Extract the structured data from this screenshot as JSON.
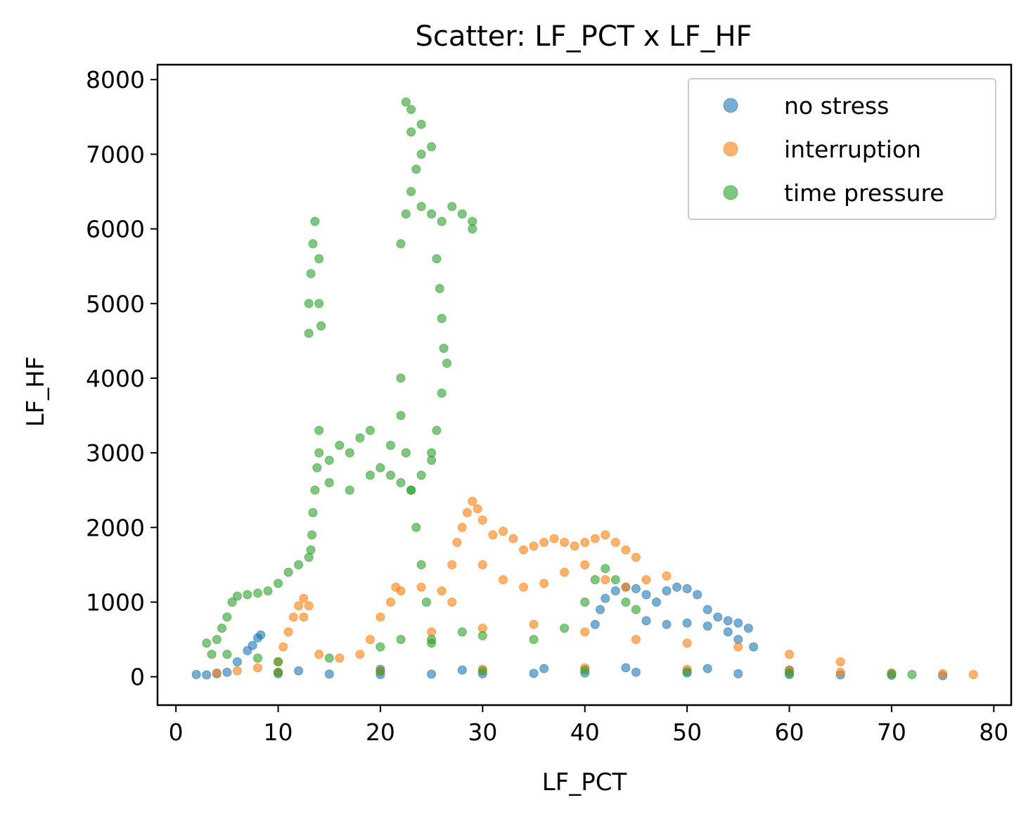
{
  "chart_data": {
    "type": "scatter",
    "title": "Scatter: LF_PCT x LF_HF",
    "xlabel": "LF_PCT",
    "ylabel": "LF_HF",
    "xlim": [
      -1.8,
      81.7
    ],
    "ylim": [
      -380,
      8200
    ],
    "xticks": [
      0,
      10,
      20,
      30,
      40,
      50,
      60,
      70,
      80
    ],
    "yticks": [
      0,
      1000,
      2000,
      3000,
      4000,
      5000,
      6000,
      7000,
      8000
    ],
    "grid": false,
    "legend_position": "top-right",
    "series": [
      {
        "name": "no stress",
        "color": "#1f77b4",
        "points": [
          [
            2,
            30
          ],
          [
            3,
            25
          ],
          [
            4,
            40
          ],
          [
            5,
            60
          ],
          [
            6,
            200
          ],
          [
            7,
            350
          ],
          [
            7.5,
            420
          ],
          [
            8,
            520
          ],
          [
            8.3,
            560
          ],
          [
            10,
            40
          ],
          [
            15,
            35
          ],
          [
            20,
            30
          ],
          [
            25,
            35
          ],
          [
            30,
            40
          ],
          [
            35,
            45
          ],
          [
            40,
            50
          ],
          [
            45,
            60
          ],
          [
            50,
            50
          ],
          [
            55,
            40
          ],
          [
            60,
            30
          ],
          [
            65,
            25
          ],
          [
            70,
            20
          ],
          [
            75,
            15
          ],
          [
            41,
            700
          ],
          [
            41.5,
            900
          ],
          [
            42,
            1050
          ],
          [
            43,
            1150
          ],
          [
            44,
            1200
          ],
          [
            45,
            1180
          ],
          [
            46,
            1100
          ],
          [
            47,
            1000
          ],
          [
            48,
            1150
          ],
          [
            49,
            1200
          ],
          [
            50,
            1180
          ],
          [
            51,
            1100
          ],
          [
            52,
            900
          ],
          [
            53,
            800
          ],
          [
            54,
            750
          ],
          [
            55,
            720
          ],
          [
            56,
            650
          ],
          [
            56.5,
            400
          ],
          [
            46,
            750
          ],
          [
            48,
            700
          ],
          [
            50,
            720
          ],
          [
            52,
            680
          ],
          [
            54,
            600
          ],
          [
            55,
            500
          ],
          [
            12,
            80
          ],
          [
            20,
            100
          ],
          [
            28,
            90
          ],
          [
            36,
            110
          ],
          [
            44,
            120
          ],
          [
            52,
            110
          ],
          [
            60,
            90
          ]
        ]
      },
      {
        "name": "interruption",
        "color": "#ff7f0e",
        "points": [
          [
            4,
            50
          ],
          [
            6,
            80
          ],
          [
            8,
            120
          ],
          [
            10,
            200
          ],
          [
            10.5,
            400
          ],
          [
            11,
            600
          ],
          [
            11.5,
            800
          ],
          [
            12,
            950
          ],
          [
            12.5,
            1050
          ],
          [
            13,
            950
          ],
          [
            12.5,
            800
          ],
          [
            14,
            300
          ],
          [
            16,
            250
          ],
          [
            18,
            300
          ],
          [
            19,
            500
          ],
          [
            20,
            800
          ],
          [
            21,
            1000
          ],
          [
            21.5,
            1200
          ],
          [
            22,
            1150
          ],
          [
            24,
            1200
          ],
          [
            26,
            1150
          ],
          [
            27,
            1000
          ],
          [
            27,
            1500
          ],
          [
            27.5,
            1800
          ],
          [
            28,
            2000
          ],
          [
            28.5,
            2200
          ],
          [
            29,
            2350
          ],
          [
            29.5,
            2250
          ],
          [
            30,
            2100
          ],
          [
            31,
            1900
          ],
          [
            32,
            1950
          ],
          [
            33,
            1850
          ],
          [
            34,
            1700
          ],
          [
            35,
            1750
          ],
          [
            36,
            1800
          ],
          [
            37,
            1850
          ],
          [
            38,
            1800
          ],
          [
            39,
            1750
          ],
          [
            40,
            1800
          ],
          [
            41,
            1850
          ],
          [
            42,
            1900
          ],
          [
            43,
            1800
          ],
          [
            44,
            1700
          ],
          [
            45,
            1600
          ],
          [
            30,
            1500
          ],
          [
            32,
            1300
          ],
          [
            34,
            1200
          ],
          [
            36,
            1250
          ],
          [
            38,
            1400
          ],
          [
            40,
            1500
          ],
          [
            42,
            1300
          ],
          [
            44,
            1200
          ],
          [
            46,
            1300
          ],
          [
            48,
            1350
          ],
          [
            25,
            600
          ],
          [
            30,
            650
          ],
          [
            35,
            700
          ],
          [
            40,
            600
          ],
          [
            45,
            500
          ],
          [
            50,
            450
          ],
          [
            55,
            400
          ],
          [
            60,
            300
          ],
          [
            65,
            200
          ],
          [
            10,
            60
          ],
          [
            20,
            80
          ],
          [
            30,
            100
          ],
          [
            40,
            120
          ],
          [
            50,
            100
          ],
          [
            60,
            80
          ],
          [
            65,
            60
          ],
          [
            70,
            50
          ],
          [
            75,
            40
          ],
          [
            78,
            30
          ]
        ]
      },
      {
        "name": "time pressure",
        "color": "#2ca02c",
        "points": [
          [
            3,
            450
          ],
          [
            3.5,
            300
          ],
          [
            4,
            500
          ],
          [
            4.5,
            650
          ],
          [
            5,
            800
          ],
          [
            5.5,
            1000
          ],
          [
            6,
            1080
          ],
          [
            7,
            1100
          ],
          [
            8,
            1120
          ],
          [
            9,
            1150
          ],
          [
            10,
            1250
          ],
          [
            11,
            1400
          ],
          [
            12,
            1500
          ],
          [
            13,
            1600
          ],
          [
            13.2,
            1700
          ],
          [
            13.3,
            1900
          ],
          [
            13.4,
            2200
          ],
          [
            13.6,
            2500
          ],
          [
            13.8,
            2800
          ],
          [
            14,
            3000
          ],
          [
            14,
            3300
          ],
          [
            15,
            2900
          ],
          [
            16,
            3100
          ],
          [
            17,
            3000
          ],
          [
            18,
            3200
          ],
          [
            19,
            3300
          ],
          [
            20,
            2800
          ],
          [
            21,
            2700
          ],
          [
            22,
            2600
          ],
          [
            23,
            2500
          ],
          [
            24,
            2700
          ],
          [
            25,
            2900
          ],
          [
            15,
            2600
          ],
          [
            17,
            2500
          ],
          [
            19,
            2700
          ],
          [
            21,
            3100
          ],
          [
            13,
            4600
          ],
          [
            13,
            5000
          ],
          [
            13.2,
            5400
          ],
          [
            13.4,
            5800
          ],
          [
            13.6,
            6100
          ],
          [
            14,
            5600
          ],
          [
            14,
            5000
          ],
          [
            14.2,
            4700
          ],
          [
            22,
            4000
          ],
          [
            22,
            3500
          ],
          [
            22.5,
            3000
          ],
          [
            23,
            2500
          ],
          [
            23.5,
            2000
          ],
          [
            24,
            1500
          ],
          [
            24.5,
            1000
          ],
          [
            25,
            500
          ],
          [
            22,
            5800
          ],
          [
            22.5,
            6200
          ],
          [
            23,
            6500
          ],
          [
            23.5,
            6800
          ],
          [
            24,
            7000
          ],
          [
            23,
            7300
          ],
          [
            22.5,
            7700
          ],
          [
            23,
            7600
          ],
          [
            24,
            7400
          ],
          [
            25,
            7100
          ],
          [
            24,
            6300
          ],
          [
            25,
            6200
          ],
          [
            26,
            6100
          ],
          [
            27,
            6300
          ],
          [
            28,
            6200
          ],
          [
            29,
            6100
          ],
          [
            29,
            6000
          ],
          [
            25.5,
            5600
          ],
          [
            25.8,
            5200
          ],
          [
            26,
            4800
          ],
          [
            26.2,
            4400
          ],
          [
            26.5,
            4200
          ],
          [
            26,
            3800
          ],
          [
            25.5,
            3300
          ],
          [
            25,
            3000
          ],
          [
            5,
            300
          ],
          [
            8,
            250
          ],
          [
            10,
            200
          ],
          [
            15,
            250
          ],
          [
            20,
            400
          ],
          [
            22,
            500
          ],
          [
            25,
            450
          ],
          [
            28,
            600
          ],
          [
            30,
            550
          ],
          [
            35,
            500
          ],
          [
            38,
            650
          ],
          [
            40,
            1000
          ],
          [
            41,
            1300
          ],
          [
            42,
            1450
          ],
          [
            43,
            1300
          ],
          [
            44,
            1000
          ],
          [
            45,
            900
          ],
          [
            10,
            60
          ],
          [
            20,
            70
          ],
          [
            30,
            80
          ],
          [
            40,
            90
          ],
          [
            50,
            70
          ],
          [
            60,
            50
          ],
          [
            70,
            40
          ],
          [
            72,
            30
          ]
        ]
      }
    ]
  }
}
